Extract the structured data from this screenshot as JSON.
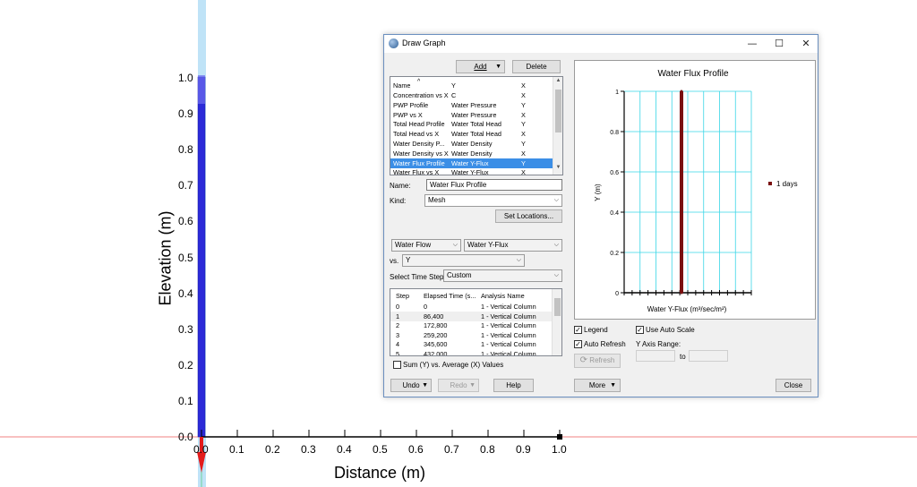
{
  "canvas": {
    "y_axis_title": "Elevation (m)",
    "x_axis_title": "Distance (m)",
    "y_ticks": [
      "1.0",
      "0.9",
      "0.8",
      "0.7",
      "0.6",
      "0.5",
      "0.4",
      "0.3",
      "0.2",
      "0.1",
      "0.0"
    ],
    "x_ticks": [
      "0.0",
      "0.1",
      "0.2",
      "0.3",
      "0.4",
      "0.5",
      "0.6",
      "0.7",
      "0.8",
      "0.9",
      "1.0"
    ]
  },
  "dialog": {
    "title": "Draw Graph",
    "add_label": "Add",
    "delete_label": "Delete",
    "list_headers": [
      "Name",
      "Y",
      "X"
    ],
    "graphs": [
      {
        "name": "Concentration vs X",
        "y": "C",
        "x": "X"
      },
      {
        "name": "PWP Profile",
        "y": "Water Pressure",
        "x": "Y"
      },
      {
        "name": "PWP vs X",
        "y": "Water Pressure",
        "x": "X"
      },
      {
        "name": "Total Head Profile",
        "y": "Water Total Head",
        "x": "Y"
      },
      {
        "name": "Total Head vs X",
        "y": "Water Total Head",
        "x": "X"
      },
      {
        "name": "Water Density P...",
        "y": "Water Density",
        "x": "Y"
      },
      {
        "name": "Water Density vs X",
        "y": "Water Density",
        "x": "X"
      },
      {
        "name": "Water Flux Profile",
        "y": "Water Y-Flux",
        "x": "Y"
      },
      {
        "name": "Water Flux vs X",
        "y": "Water Y-Flux",
        "x": "X"
      }
    ],
    "name_label": "Name:",
    "name_value": "Water Flux Profile",
    "kind_label": "Kind:",
    "kind_value": "Mesh",
    "set_locations_label": "Set Locations...",
    "y_category": "Water Flow",
    "y_variable": "Water Y-Flux",
    "vs_label": "vs.",
    "x_variable": "Y",
    "time_steps_label": "Select Time Steps:",
    "time_steps_value": "Custom",
    "step_headers": [
      "Step",
      "Elapsed Time (s...",
      "Analysis Name"
    ],
    "steps": [
      {
        "step": "0",
        "time": "0",
        "analysis": "1 - Vertical Column"
      },
      {
        "step": "1",
        "time": "86,400",
        "analysis": "1 - Vertical Column"
      },
      {
        "step": "2",
        "time": "172,800",
        "analysis": "1 - Vertical Column"
      },
      {
        "step": "3",
        "time": "259,200",
        "analysis": "1 - Vertical Column"
      },
      {
        "step": "4",
        "time": "345,600",
        "analysis": "1 - Vertical Column"
      },
      {
        "step": "5",
        "time": "432,000",
        "analysis": "1 - Vertical Column"
      }
    ],
    "sum_label": "Sum (Y) vs. Average (X) Values",
    "legend_label": "Legend",
    "use_auto_scale_label": "Use Auto Scale",
    "auto_refresh_label": "Auto Refresh",
    "y_axis_range_label": "Y Axis Range:",
    "to_label": "to",
    "refresh_label": "Refresh",
    "undo_label": "Undo",
    "redo_label": "Redo",
    "help_label": "Help",
    "more_label": "More",
    "close_label": "Close"
  },
  "chart_data": {
    "type": "line",
    "title": "Water Flux Profile",
    "xlabel": "Water Y-Flux (m³/sec/m²)",
    "ylabel": "Y (m)",
    "ylim": [
      0,
      1
    ],
    "y_ticks": [
      "1",
      "0.8",
      "0.6",
      "0.4",
      "0.2",
      "0"
    ],
    "legend_position": "right",
    "grid": true,
    "series": [
      {
        "name": "1 days",
        "color": "#7a1010",
        "points": [
          [
            0,
            0
          ],
          [
            0,
            0.2
          ],
          [
            0,
            0.4
          ],
          [
            0,
            0.6
          ],
          [
            0,
            0.8
          ],
          [
            0,
            1
          ]
        ]
      }
    ]
  }
}
